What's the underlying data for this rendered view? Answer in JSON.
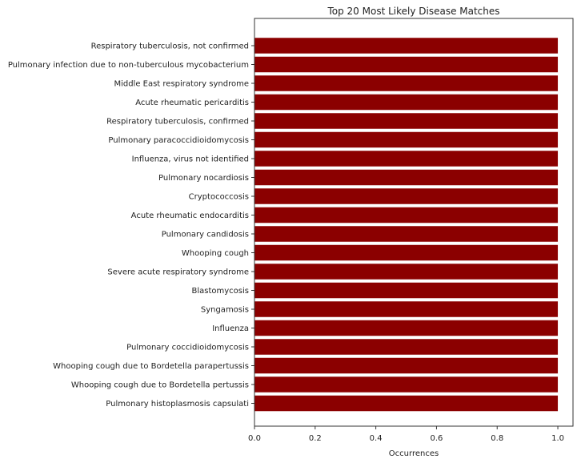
{
  "chart_data": {
    "type": "bar",
    "orientation": "horizontal",
    "title": "Top 20 Most Likely Disease Matches",
    "xlabel": "Occurrences",
    "ylabel": "",
    "xlim": [
      0,
      1.05
    ],
    "xticks": [
      "0.0",
      "0.2",
      "0.4",
      "0.6",
      "0.8",
      "1.0"
    ],
    "grid": false,
    "categories": [
      "Respiratory tuberculosis, not confirmed",
      "Pulmonary infection due to non-tuberculous mycobacterium",
      "Middle East respiratory syndrome",
      "Acute rheumatic pericarditis",
      "Respiratory tuberculosis, confirmed",
      "Pulmonary paracoccidioidomycosis",
      "Influenza, virus not identified",
      "Pulmonary nocardiosis",
      "Cryptococcosis",
      "Acute rheumatic endocarditis",
      "Pulmonary candidosis",
      "Whooping cough",
      "Severe acute respiratory syndrome",
      "Blastomycosis",
      "Syngamosis",
      "Influenza",
      "Pulmonary coccidioidomycosis",
      "Whooping cough due to Bordetella parapertussis",
      "Whooping cough due to Bordetella pertussis",
      "Pulmonary histoplasmosis capsulati"
    ],
    "values": [
      1,
      1,
      1,
      1,
      1,
      1,
      1,
      1,
      1,
      1,
      1,
      1,
      1,
      1,
      1,
      1,
      1,
      1,
      1,
      1
    ],
    "bar_color": "#8b0000"
  }
}
